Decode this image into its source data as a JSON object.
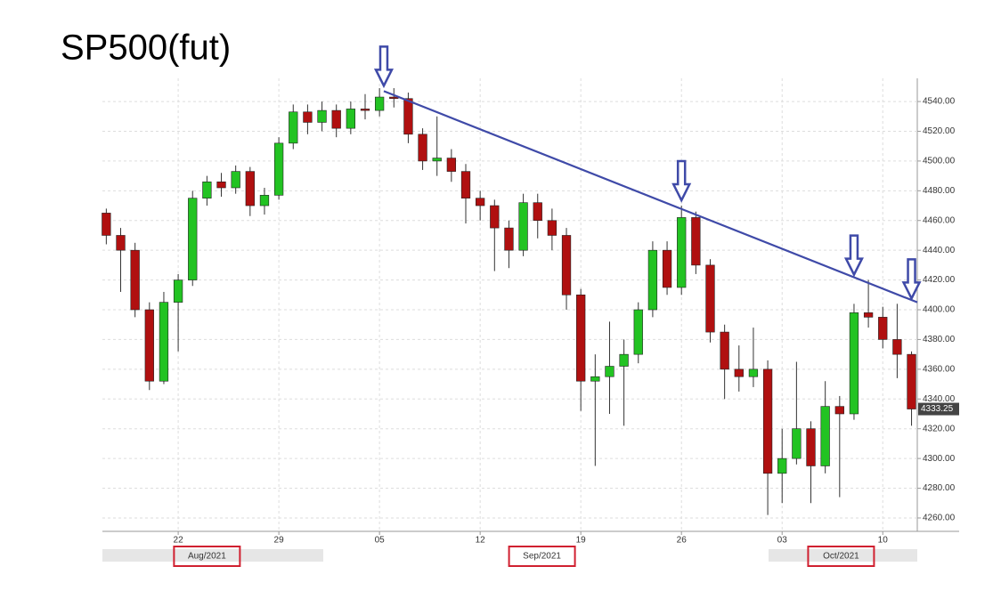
{
  "chart_data": {
    "type": "candlestick",
    "title": "SP500(fut)",
    "x": [
      17,
      18,
      19,
      20,
      21,
      22,
      23,
      24,
      25,
      26,
      27,
      28,
      29,
      30,
      31,
      32,
      33,
      34,
      35,
      36,
      37,
      38,
      39,
      40,
      41,
      42,
      43,
      44,
      45,
      46,
      47,
      48,
      49,
      50,
      51,
      52,
      53,
      54,
      55,
      56,
      57,
      58,
      59,
      60,
      61,
      62,
      63,
      64,
      65,
      66,
      67,
      68,
      69,
      70,
      71,
      72,
      73
    ],
    "open": [
      4465,
      4450,
      4440,
      4400,
      4352,
      4405,
      4420,
      4475,
      4486,
      4482,
      4493,
      4470,
      4477,
      4512,
      4533,
      4526,
      4534,
      4522,
      4535,
      4534,
      4543,
      4542,
      4518,
      4500,
      4502,
      4493,
      4475,
      4470,
      4455,
      4440,
      4472,
      4460,
      4450,
      4410,
      4352,
      4355,
      4362,
      4370,
      4400,
      4440,
      4415,
      4462,
      4430,
      4385,
      4360,
      4355,
      4360,
      4290,
      4300,
      4320,
      4295,
      4335,
      4330,
      4398,
      4395,
      4380,
      4370
    ],
    "high": [
      4468,
      4455,
      4445,
      4405,
      4412,
      4424,
      4480,
      4490,
      4492,
      4497,
      4496,
      4482,
      4516,
      4538,
      4538,
      4540,
      4538,
      4540,
      4545,
      4549,
      4549,
      4546,
      4522,
      4530,
      4508,
      4498,
      4480,
      4474,
      4460,
      4478,
      4478,
      4468,
      4455,
      4414,
      4370,
      4392,
      4380,
      4405,
      4446,
      4446,
      4470,
      4466,
      4434,
      4390,
      4376,
      4388,
      4366,
      4320,
      4365,
      4325,
      4352,
      4342,
      4404,
      4420,
      4402,
      4404,
      4372
    ],
    "low": [
      4444,
      4412,
      4395,
      4346,
      4350,
      4372,
      4416,
      4470,
      4476,
      4478,
      4463,
      4464,
      4474,
      4508,
      4518,
      4520,
      4516,
      4518,
      4528,
      4530,
      4536,
      4512,
      4494,
      4490,
      4486,
      4458,
      4460,
      4426,
      4428,
      4436,
      4448,
      4440,
      4400,
      4332,
      4295,
      4330,
      4322,
      4364,
      4395,
      4410,
      4410,
      4424,
      4378,
      4340,
      4345,
      4348,
      4262,
      4270,
      4296,
      4270,
      4290,
      4274,
      4326,
      4388,
      4374,
      4354,
      4322
    ],
    "close": [
      4450,
      4440,
      4400,
      4352,
      4405,
      4420,
      4475,
      4486,
      4482,
      4493,
      4470,
      4477,
      4512,
      4533,
      4526,
      4534,
      4522,
      4535,
      4534,
      4543,
      4542,
      4518,
      4500,
      4502,
      4493,
      4475,
      4470,
      4455,
      4440,
      4472,
      4460,
      4450,
      4410,
      4352,
      4355,
      4362,
      4370,
      4400,
      4440,
      4415,
      4462,
      4430,
      4385,
      4360,
      4355,
      4360,
      4290,
      4300,
      4320,
      4295,
      4335,
      4330,
      4398,
      4395,
      4380,
      4370,
      4333.25
    ],
    "up_color": "#22c322",
    "down_color": "#b01010",
    "xlim": [
      16.73,
      73.4
    ],
    "xticks": [
      {
        "value": 22,
        "label": "22"
      },
      {
        "value": 29,
        "label": "29"
      },
      {
        "value": 36,
        "label": "05"
      },
      {
        "value": 43,
        "label": "12"
      },
      {
        "value": 50,
        "label": "19"
      },
      {
        "value": 57,
        "label": "26"
      },
      {
        "value": 64,
        "label": "03"
      },
      {
        "value": 71,
        "label": "10"
      }
    ],
    "month_labels": [
      {
        "value": 24,
        "label": "Aug/2021"
      },
      {
        "value": 47.3,
        "label": "Sep/2021"
      },
      {
        "value": 68.1,
        "label": "Oct/2021"
      }
    ],
    "ylim": [
      4251,
      4555.6
    ],
    "yticks": [
      {
        "value": 4260,
        "label": "4260.00"
      },
      {
        "value": 4280,
        "label": "4280.00"
      },
      {
        "value": 4300,
        "label": "4300.00"
      },
      {
        "value": 4320,
        "label": "4320.00"
      },
      {
        "value": 4340,
        "label": "4340.00"
      },
      {
        "value": 4360,
        "label": "4360.00"
      },
      {
        "value": 4380,
        "label": "4380.00"
      },
      {
        "value": 4400,
        "label": "4400.00"
      },
      {
        "value": 4420,
        "label": "4420.00"
      },
      {
        "value": 4440,
        "label": "4440.00"
      },
      {
        "value": 4460,
        "label": "4460.00"
      },
      {
        "value": 4480,
        "label": "4480.00"
      },
      {
        "value": 4500,
        "label": "4500.00"
      },
      {
        "value": 4520,
        "label": "4520.00"
      },
      {
        "value": 4540,
        "label": "4540.00"
      }
    ],
    "last_price_label": "4333.25",
    "grid": true,
    "trendline": {
      "x": [
        36.3,
        73.4
      ],
      "y": [
        4547,
        4405
      ],
      "color": "#3f4aa8"
    },
    "arrows": {
      "x": [
        36.3,
        57,
        69,
        73
      ],
      "y": [
        4547,
        4470,
        4420,
        4404
      ],
      "color": "#3f4aa8"
    }
  }
}
